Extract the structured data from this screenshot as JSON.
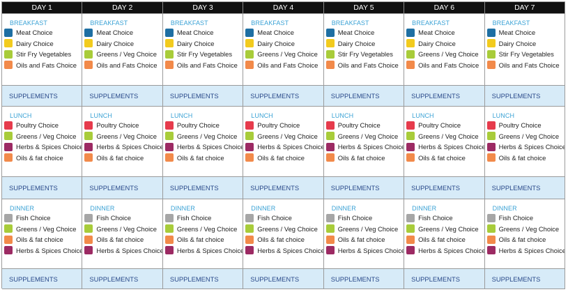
{
  "days": [
    "DAY 1",
    "DAY 2",
    "DAY 3",
    "DAY 4",
    "DAY 5",
    "DAY 6",
    "DAY 7"
  ],
  "colors": {
    "header_bg": "#111111",
    "supplement_bg": "#d7ebf8",
    "meal_title": "#3aa2d5",
    "meat": "#1e6fa3",
    "dairy": "#f2cb1e",
    "vegetables": "#a8cc3a",
    "oils": "#f28a4a",
    "poultry": "#e63b4c",
    "herbs": "#9c2a63",
    "fish": "#a6a6a6"
  },
  "supplements_label": "SUPPLEMENTS",
  "meals": [
    {
      "title": "BREAKFAST",
      "days": [
        [
          {
            "label": "Meat Choice",
            "color": "meat"
          },
          {
            "label": "Dairy Choice",
            "color": "dairy"
          },
          {
            "label": "Stir Fry Vegetables",
            "color": "vegetables"
          },
          {
            "label": "Oils and Fats Choice",
            "color": "oils"
          }
        ],
        [
          {
            "label": "Meat Choice",
            "color": "meat"
          },
          {
            "label": "Dairy Choice",
            "color": "dairy"
          },
          {
            "label": "Greens / Veg Choice",
            "color": "vegetables"
          },
          {
            "label": "Oils and Fats Choice",
            "color": "oils"
          }
        ],
        [
          {
            "label": "Meat Choice",
            "color": "meat"
          },
          {
            "label": "Dairy Choice",
            "color": "dairy"
          },
          {
            "label": "Stir Fry Vegetables",
            "color": "vegetables"
          },
          {
            "label": "Oils and Fats Choice",
            "color": "oils"
          }
        ],
        [
          {
            "label": "Meat Choice",
            "color": "meat"
          },
          {
            "label": "Dairy Choice",
            "color": "dairy"
          },
          {
            "label": "Greens / Veg Choice",
            "color": "vegetables"
          },
          {
            "label": "Oils and Fats Choice",
            "color": "oils"
          }
        ],
        [
          {
            "label": "Meat Choice",
            "color": "meat"
          },
          {
            "label": "Dairy Choice",
            "color": "dairy"
          },
          {
            "label": "Stir Fry Vegetables",
            "color": "vegetables"
          },
          {
            "label": "Oils and Fats Choice",
            "color": "oils"
          }
        ],
        [
          {
            "label": "Meat Choice",
            "color": "meat"
          },
          {
            "label": "Dairy Choice",
            "color": "dairy"
          },
          {
            "label": "Greens / Veg Choice",
            "color": "vegetables"
          },
          {
            "label": "Oils and Fats Choice",
            "color": "oils"
          }
        ],
        [
          {
            "label": "Meat Choice",
            "color": "meat"
          },
          {
            "label": "Dairy Choice",
            "color": "dairy"
          },
          {
            "label": "Stir Fry Vegetables",
            "color": "vegetables"
          },
          {
            "label": "Oils and Fats Choice",
            "color": "oils"
          }
        ]
      ]
    },
    {
      "title": "LUNCH",
      "days": [
        [
          {
            "label": "Poultry Choice",
            "color": "poultry"
          },
          {
            "label": "Greens / Veg Choice",
            "color": "vegetables"
          },
          {
            "label": "Herbs & Spices Choices",
            "color": "herbs"
          },
          {
            "label": "Oils & fat choice",
            "color": "oils"
          }
        ],
        [
          {
            "label": "Poultry Choice",
            "color": "poultry"
          },
          {
            "label": "Greens / Veg Choice",
            "color": "vegetables"
          },
          {
            "label": "Herbs & Spices Choices",
            "color": "herbs"
          },
          {
            "label": "Oils & fat choice",
            "color": "oils"
          }
        ],
        [
          {
            "label": "Poultry Choice",
            "color": "poultry"
          },
          {
            "label": "Greens / Veg Choice",
            "color": "vegetables"
          },
          {
            "label": "Herbs & Spices Choices",
            "color": "herbs"
          },
          {
            "label": "Oils & fat choice",
            "color": "oils"
          }
        ],
        [
          {
            "label": "Poultry Choice",
            "color": "poultry"
          },
          {
            "label": "Greens / Veg Choice",
            "color": "vegetables"
          },
          {
            "label": "Herbs & Spices Choices",
            "color": "herbs"
          },
          {
            "label": "Oils & fat choice",
            "color": "oils"
          }
        ],
        [
          {
            "label": "Poultry Choice",
            "color": "poultry"
          },
          {
            "label": "Greens / Veg Choice",
            "color": "vegetables"
          },
          {
            "label": "Herbs & Spices Choices",
            "color": "herbs"
          },
          {
            "label": "Oils & fat choice",
            "color": "oils"
          }
        ],
        [
          {
            "label": "Poultry Choice",
            "color": "poultry"
          },
          {
            "label": "Greens / Veg Choice",
            "color": "vegetables"
          },
          {
            "label": "Herbs & Spices Choices",
            "color": "herbs"
          },
          {
            "label": "Oils & fat choice",
            "color": "oils"
          }
        ],
        [
          {
            "label": "Poultry Choice",
            "color": "poultry"
          },
          {
            "label": "Greens / Veg Choice",
            "color": "vegetables"
          },
          {
            "label": "Herbs & Spices Choices",
            "color": "herbs"
          },
          {
            "label": "Oils & fat choice",
            "color": "oils"
          }
        ]
      ]
    },
    {
      "title": "DINNER",
      "days": [
        [
          {
            "label": "Fish Choice",
            "color": "fish"
          },
          {
            "label": "Greens / Veg Choice",
            "color": "vegetables"
          },
          {
            "label": "Oils & fat choice",
            "color": "oils"
          },
          {
            "label": "Herbs & Spices Choices",
            "color": "herbs"
          }
        ],
        [
          {
            "label": "Fish Choice",
            "color": "fish"
          },
          {
            "label": "Greens / Veg Choice",
            "color": "vegetables"
          },
          {
            "label": "Oils & fat choice",
            "color": "oils"
          },
          {
            "label": "Herbs & Spices Choices",
            "color": "herbs"
          }
        ],
        [
          {
            "label": "Fish Choice",
            "color": "fish"
          },
          {
            "label": "Greens / Veg Choice",
            "color": "vegetables"
          },
          {
            "label": "Oils & fat choice",
            "color": "oils"
          },
          {
            "label": "Herbs & Spices Choices",
            "color": "herbs"
          }
        ],
        [
          {
            "label": "Fish Choice",
            "color": "fish"
          },
          {
            "label": "Greens / Veg Choice",
            "color": "vegetables"
          },
          {
            "label": "Oils & fat choice",
            "color": "oils"
          },
          {
            "label": "Herbs & Spices Choices",
            "color": "herbs"
          }
        ],
        [
          {
            "label": "Fish Choice",
            "color": "fish"
          },
          {
            "label": "Greens / Veg Choice",
            "color": "vegetables"
          },
          {
            "label": "Oils & fat choice",
            "color": "oils"
          },
          {
            "label": "Herbs & Spices Choices",
            "color": "herbs"
          }
        ],
        [
          {
            "label": "Fish Choice",
            "color": "fish"
          },
          {
            "label": "Greens / Veg Choice",
            "color": "vegetables"
          },
          {
            "label": "Oils & fat choice",
            "color": "oils"
          },
          {
            "label": "Herbs & Spices Choices",
            "color": "herbs"
          }
        ],
        [
          {
            "label": "Fish Choice",
            "color": "fish"
          },
          {
            "label": "Greens / Veg Choice",
            "color": "vegetables"
          },
          {
            "label": "Oils & fat choice",
            "color": "oils"
          },
          {
            "label": "Herbs & Spices Choices",
            "color": "herbs"
          }
        ]
      ]
    }
  ]
}
